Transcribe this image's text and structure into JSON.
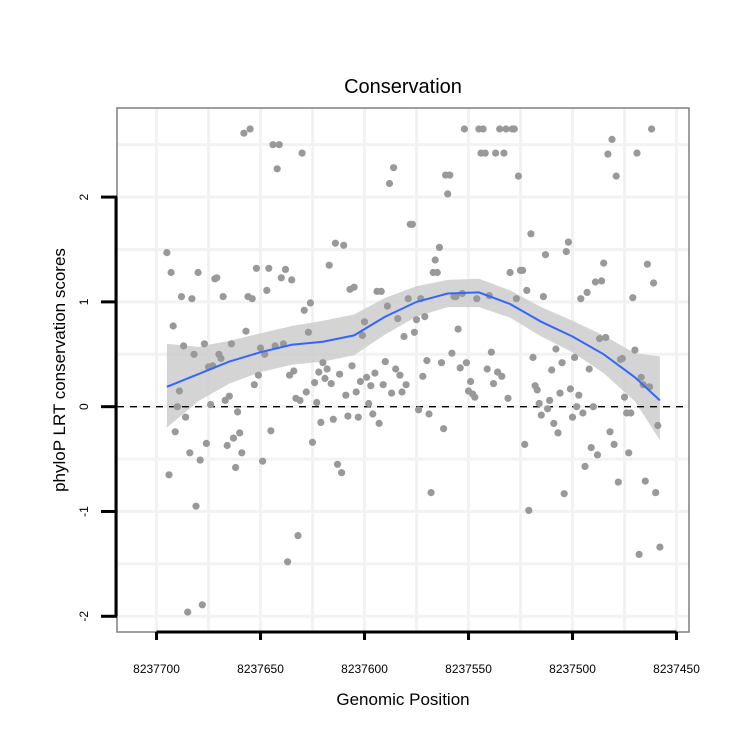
{
  "chart_data": {
    "type": "scatter",
    "title": "Conservation",
    "xlabel": "Genomic Position",
    "ylabel": "phyloP LRT conservation scores",
    "x_reversed": true,
    "xlim": [
      8237719,
      8237444
    ],
    "ylim": [
      -2.15,
      2.85
    ],
    "xticks": [
      8237700,
      8237650,
      8237600,
      8237550,
      8237500,
      8237450
    ],
    "yticks": [
      -2,
      -1,
      0,
      1,
      2
    ],
    "grid": true,
    "reference_line": {
      "y": 0,
      "style": "dashed",
      "color": "#000000"
    },
    "colors": {
      "points": "#999999",
      "smooth": "#3366ff",
      "ribbon": "#cccccc",
      "panel_border": "#7f7f7f",
      "grid": "#f2f2f2"
    },
    "series": [
      {
        "kind": "points",
        "points": [
          [
            8237695,
            1.47
          ],
          [
            8237694,
            -0.65
          ],
          [
            8237693,
            1.28
          ],
          [
            8237692,
            0.77
          ],
          [
            8237691,
            -0.24
          ],
          [
            8237690,
            0.0
          ],
          [
            8237689,
            0.15
          ],
          [
            8237688,
            1.05
          ],
          [
            8237687,
            0.58
          ],
          [
            8237686,
            -0.1
          ],
          [
            8237685,
            -1.96
          ],
          [
            8237684,
            -0.44
          ],
          [
            8237683,
            1.03
          ],
          [
            8237682,
            0.5
          ],
          [
            8237681,
            -0.95
          ],
          [
            8237680,
            1.28
          ],
          [
            8237679,
            -0.51
          ],
          [
            8237678,
            -1.89
          ],
          [
            8237677,
            0.6
          ],
          [
            8237676,
            -0.35
          ],
          [
            8237675,
            0.38
          ],
          [
            8237674,
            0.02
          ],
          [
            8237673,
            0.39
          ],
          [
            8237672,
            1.22
          ],
          [
            8237671,
            1.23
          ],
          [
            8237670,
            0.5
          ],
          [
            8237669,
            0.46
          ],
          [
            8237668,
            1.05
          ],
          [
            8237667,
            0.06
          ],
          [
            8237666,
            -0.37
          ],
          [
            8237665,
            0.1
          ],
          [
            8237664,
            0.6
          ],
          [
            8237663,
            -0.3
          ],
          [
            8237662,
            -0.58
          ],
          [
            8237661,
            -0.05
          ],
          [
            8237660,
            -0.25
          ],
          [
            8237659,
            -0.44
          ],
          [
            8237658,
            2.61
          ],
          [
            8237657,
            0.72
          ],
          [
            8237656,
            1.05
          ],
          [
            8237655,
            2.65
          ],
          [
            8237654,
            1.03
          ],
          [
            8237653,
            0.21
          ],
          [
            8237652,
            1.32
          ],
          [
            8237651,
            0.3
          ],
          [
            8237650,
            0.56
          ],
          [
            8237649,
            -0.52
          ],
          [
            8237648,
            0.5
          ],
          [
            8237647,
            1.11
          ],
          [
            8237646,
            1.32
          ],
          [
            8237645,
            -0.23
          ],
          [
            8237644,
            2.5
          ],
          [
            8237643,
            0.58
          ],
          [
            8237642,
            2.27
          ],
          [
            8237641,
            2.5
          ],
          [
            8237640,
            1.23
          ],
          [
            8237639,
            0.6
          ],
          [
            8237638,
            1.31
          ],
          [
            8237637,
            -1.48
          ],
          [
            8237636,
            0.3
          ],
          [
            8237635,
            1.21
          ],
          [
            8237634,
            0.34
          ],
          [
            8237633,
            0.08
          ],
          [
            8237632,
            -1.23
          ],
          [
            8237631,
            0.06
          ],
          [
            8237630,
            2.42
          ],
          [
            8237629,
            0.92
          ],
          [
            8237628,
            0.14
          ],
          [
            8237627,
            0.71
          ],
          [
            8237626,
            0.99
          ],
          [
            8237625,
            -0.34
          ],
          [
            8237624,
            0.23
          ],
          [
            8237623,
            0.04
          ],
          [
            8237622,
            0.33
          ],
          [
            8237621,
            -0.15
          ],
          [
            8237620,
            0.42
          ],
          [
            8237619,
            0.27
          ],
          [
            8237618,
            0.36
          ],
          [
            8237617,
            1.35
          ],
          [
            8237616,
            0.22
          ],
          [
            8237615,
            -0.12
          ],
          [
            8237614,
            1.56
          ],
          [
            8237613,
            -0.55
          ],
          [
            8237612,
            0.31
          ],
          [
            8237611,
            -0.63
          ],
          [
            8237610,
            1.54
          ],
          [
            8237609,
            0.11
          ],
          [
            8237608,
            -0.09
          ],
          [
            8237607,
            1.12
          ],
          [
            8237606,
            0.39
          ],
          [
            8237605,
            1.14
          ],
          [
            8237604,
            0.14
          ],
          [
            8237603,
            -0.1
          ],
          [
            8237602,
            0.24
          ],
          [
            8237601,
            0.68
          ],
          [
            8237600,
            0.81
          ],
          [
            8237599,
            0.28
          ],
          [
            8237598,
            0.03
          ],
          [
            8237597,
            0.2
          ],
          [
            8237596,
            -0.07
          ],
          [
            8237595,
            0.32
          ],
          [
            8237594,
            1.1
          ],
          [
            8237593,
            -0.16
          ],
          [
            8237592,
            1.1
          ],
          [
            8237591,
            0.21
          ],
          [
            8237590,
            0.43
          ],
          [
            8237589,
            0.96
          ],
          [
            8237588,
            2.13
          ],
          [
            8237587,
            0.13
          ],
          [
            8237586,
            2.28
          ],
          [
            8237585,
            0.36
          ],
          [
            8237584,
            0.84
          ],
          [
            8237583,
            0.3
          ],
          [
            8237582,
            0.14
          ],
          [
            8237581,
            0.67
          ],
          [
            8237580,
            0.21
          ],
          [
            8237579,
            1.03
          ],
          [
            8237578,
            1.74
          ],
          [
            8237577,
            1.74
          ],
          [
            8237576,
            0.71
          ],
          [
            8237575,
            0.83
          ],
          [
            8237574,
            -0.03
          ],
          [
            8237573,
            1.03
          ],
          [
            8237572,
            0.29
          ],
          [
            8237571,
            0.86
          ],
          [
            8237570,
            0.44
          ],
          [
            8237569,
            -0.07
          ],
          [
            8237568,
            -0.82
          ],
          [
            8237567,
            1.28
          ],
          [
            8237566,
            1.4
          ],
          [
            8237565,
            1.28
          ],
          [
            8237564,
            1.52
          ],
          [
            8237563,
            0.42
          ],
          [
            8237562,
            -0.21
          ],
          [
            8237561,
            2.21
          ],
          [
            8237560,
            2.03
          ],
          [
            8237559,
            2.21
          ],
          [
            8237558,
            0.51
          ],
          [
            8237557,
            1.05
          ],
          [
            8237556,
            1.05
          ],
          [
            8237555,
            0.74
          ],
          [
            8237554,
            0.37
          ],
          [
            8237553,
            1.08
          ],
          [
            8237552,
            2.65
          ],
          [
            8237551,
            0.42
          ],
          [
            8237550,
            0.15
          ],
          [
            8237549,
            0.24
          ],
          [
            8237548,
            0.12
          ],
          [
            8237547,
            0.09
          ],
          [
            8237546,
            1.03
          ],
          [
            8237545,
            2.65
          ],
          [
            8237544,
            2.42
          ],
          [
            8237543,
            2.65
          ],
          [
            8237542,
            2.42
          ],
          [
            8237541,
            0.36
          ],
          [
            8237540,
            1.06
          ],
          [
            8237539,
            0.52
          ],
          [
            8237538,
            0.22
          ],
          [
            8237537,
            2.42
          ],
          [
            8237536,
            0.33
          ],
          [
            8237535,
            2.65
          ],
          [
            8237534,
            0.29
          ],
          [
            8237533,
            2.42
          ],
          [
            8237532,
            2.65
          ],
          [
            8237531,
            0.08
          ],
          [
            8237530,
            1.28
          ],
          [
            8237529,
            2.65
          ],
          [
            8237528,
            2.65
          ],
          [
            8237527,
            1.03
          ],
          [
            8237526,
            2.2
          ],
          [
            8237525,
            1.3
          ],
          [
            8237524,
            1.3
          ],
          [
            8237523,
            -0.36
          ],
          [
            8237522,
            1.11
          ],
          [
            8237521,
            -0.99
          ],
          [
            8237520,
            1.65
          ],
          [
            8237519,
            0.47
          ],
          [
            8237518,
            0.2
          ],
          [
            8237517,
            0.16
          ],
          [
            8237516,
            0.03
          ],
          [
            8237515,
            -0.08
          ],
          [
            8237514,
            1.05
          ],
          [
            8237513,
            1.45
          ],
          [
            8237512,
            -0.02
          ],
          [
            8237511,
            0.06
          ],
          [
            8237510,
            0.35
          ],
          [
            8237509,
            -0.16
          ],
          [
            8237508,
            0.55
          ],
          [
            8237507,
            -0.25
          ],
          [
            8237506,
            0.13
          ],
          [
            8237505,
            0.42
          ],
          [
            8237504,
            -0.83
          ],
          [
            8237503,
            1.48
          ],
          [
            8237502,
            1.57
          ],
          [
            8237501,
            0.17
          ],
          [
            8237500,
            -0.1
          ],
          [
            8237499,
            0.47
          ],
          [
            8237498,
            0.0
          ],
          [
            8237497,
            0.11
          ],
          [
            8237496,
            1.03
          ],
          [
            8237495,
            -0.06
          ],
          [
            8237494,
            -0.57
          ],
          [
            8237493,
            1.09
          ],
          [
            8237492,
            0.36
          ],
          [
            8237491,
            -0.39
          ],
          [
            8237490,
            0.0
          ],
          [
            8237489,
            1.19
          ],
          [
            8237488,
            -0.46
          ],
          [
            8237487,
            0.65
          ],
          [
            8237486,
            1.2
          ],
          [
            8237485,
            1.37
          ],
          [
            8237484,
            0.66
          ],
          [
            8237483,
            2.41
          ],
          [
            8237482,
            -0.24
          ],
          [
            8237481,
            2.55
          ],
          [
            8237480,
            -0.36
          ],
          [
            8237479,
            2.2
          ],
          [
            8237478,
            -0.72
          ],
          [
            8237477,
            0.45
          ],
          [
            8237476,
            0.46
          ],
          [
            8237475,
            0.09
          ],
          [
            8237474,
            -0.06
          ],
          [
            8237473,
            -0.44
          ],
          [
            8237472,
            -0.06
          ],
          [
            8237471,
            1.04
          ],
          [
            8237470,
            0.54
          ],
          [
            8237469,
            2.42
          ],
          [
            8237468,
            -1.41
          ],
          [
            8237467,
            0.28
          ],
          [
            8237466,
            0.21
          ],
          [
            8237465,
            -0.71
          ],
          [
            8237464,
            1.36
          ],
          [
            8237463,
            0.19
          ],
          [
            8237462,
            2.65
          ],
          [
            8237461,
            1.18
          ],
          [
            8237460,
            -0.82
          ],
          [
            8237459,
            -0.18
          ],
          [
            8237458,
            -1.34
          ]
        ]
      },
      {
        "kind": "loess",
        "x": [
          8237695,
          8237680,
          8237665,
          8237650,
          8237635,
          8237620,
          8237605,
          8237590,
          8237575,
          8237560,
          8237545,
          8237530,
          8237515,
          8237500,
          8237485,
          8237470,
          8237458
        ],
        "y": [
          0.19,
          0.31,
          0.43,
          0.52,
          0.59,
          0.62,
          0.68,
          0.86,
          1.0,
          1.08,
          1.09,
          0.98,
          0.81,
          0.67,
          0.5,
          0.28,
          0.06
        ],
        "lower": [
          -0.2,
          0.05,
          0.22,
          0.33,
          0.4,
          0.43,
          0.49,
          0.69,
          0.86,
          0.95,
          0.95,
          0.85,
          0.67,
          0.52,
          0.32,
          0.05,
          -0.32
        ],
        "upper": [
          0.6,
          0.57,
          0.63,
          0.7,
          0.77,
          0.82,
          0.88,
          1.04,
          1.15,
          1.21,
          1.22,
          1.11,
          0.95,
          0.82,
          0.68,
          0.51,
          0.48
        ]
      }
    ]
  }
}
